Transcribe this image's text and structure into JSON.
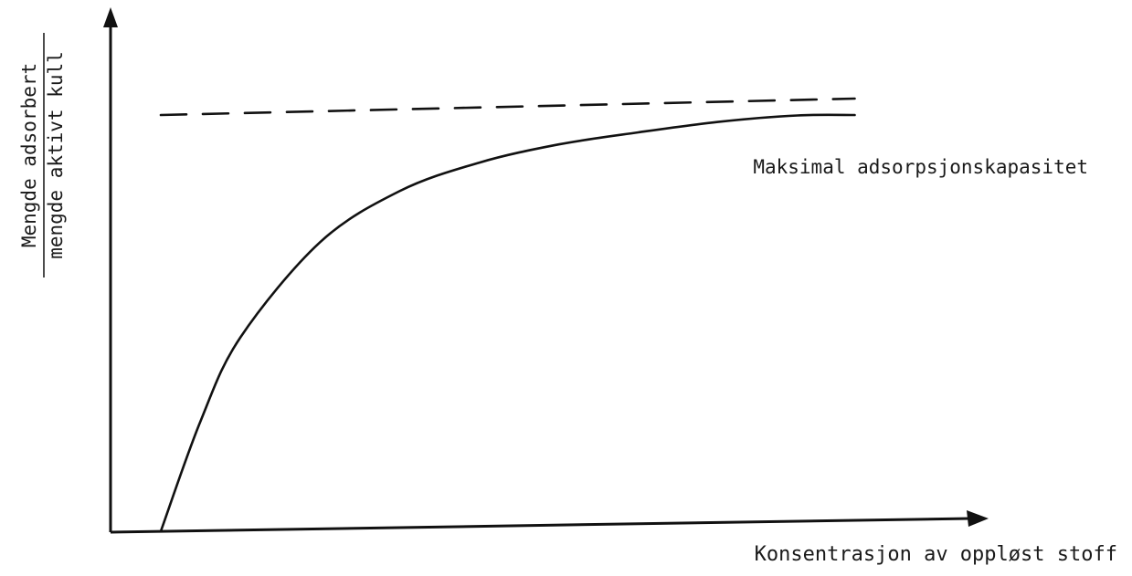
{
  "chart_data": {
    "type": "line",
    "title": "",
    "xlabel": "Konsentrasjon av oppløst stoff",
    "ylabel": {
      "numerator": "Mengde adsorbert",
      "denominator": "mengde aktivt kull"
    },
    "annotation": "Maksimal adsorpsjonskapasitet",
    "xlim": [
      0,
      1
    ],
    "ylim": [
      0,
      1
    ],
    "grid": false,
    "series": [
      {
        "style": "solid",
        "x": [
          0.0,
          0.05,
          0.1,
          0.2,
          0.3,
          0.4,
          0.5,
          0.6,
          0.7,
          0.8,
          0.872
        ],
        "y": [
          0.0,
          0.255,
          0.448,
          0.668,
          0.786,
          0.852,
          0.894,
          0.922,
          0.946,
          0.961,
          0.962
        ]
      },
      {
        "style": "dashed",
        "x": [
          0.0,
          0.872
        ],
        "y": [
          0.962,
          1.0
        ]
      }
    ]
  },
  "colors": {
    "ink": "#111111",
    "background": "#ffffff"
  }
}
